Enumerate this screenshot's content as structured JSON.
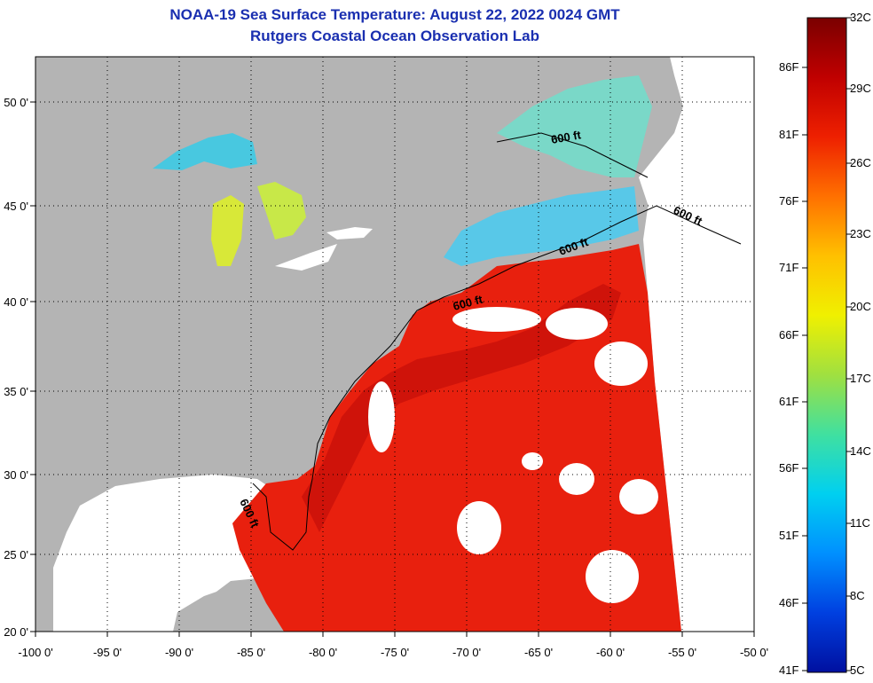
{
  "title": "NOAA-19 Sea Surface Temperature:  August 22, 2022 0024 GMT",
  "subtitle": "Rutgers Coastal Ocean Observation Lab",
  "colors": {
    "land": "#b4b4b4",
    "no_data": "#ffffff",
    "warm_water": "#e8200e",
    "gulf_stream": "#c8100a",
    "cool_water": "#58c8e8",
    "title_text": "#1a2fb0"
  },
  "map": {
    "lon_ticks": [
      "-100 0'",
      "-95 0'",
      "-90 0'",
      "-85 0'",
      "-80 0'",
      "-75 0'",
      "-70 0'",
      "-65 0'",
      "-60 0'",
      "-55 0'",
      "-50 0'"
    ],
    "lat_ticks": [
      "50 0'",
      "45 0'",
      "40 0'",
      "35 0'",
      "30 0'",
      "25 0'",
      "20 0'"
    ],
    "contour_labels": [
      "600 ft",
      "600 ft",
      "600 ft",
      "600 ft",
      "600 ft"
    ]
  },
  "colorbar": {
    "celsius_labels": [
      "32C",
      "29C",
      "26C",
      "23C",
      "20C",
      "17C",
      "14C",
      "11C",
      "8C",
      "5C"
    ],
    "fahrenheit_labels": [
      "86F",
      "81F",
      "76F",
      "71F",
      "66F",
      "61F",
      "56F",
      "51F",
      "46F",
      "41F"
    ],
    "gradient_colors": [
      "#7a0000",
      "#c00000",
      "#ee2000",
      "#ff7000",
      "#ffc000",
      "#f0f000",
      "#a0e040",
      "#40e0a0",
      "#00d0f0",
      "#0090ff",
      "#0040e0",
      "#0010a0"
    ]
  }
}
